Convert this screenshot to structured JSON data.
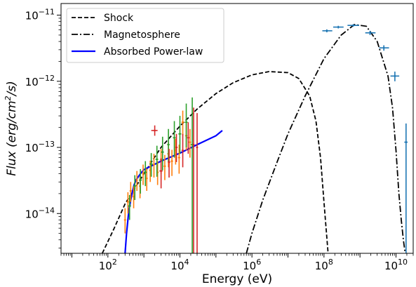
{
  "chart_data": {
    "type": "line",
    "xlabel": "Energy (eV)",
    "ylabel": "Flux (erg/cm²/s)",
    "ylabel_parts": {
      "pre": "Flux (erg/cm",
      "sup": "2",
      "post": "/s)"
    },
    "x_scale": "log",
    "y_scale": "log",
    "xlim": [
      5.0,
      30000000000.0
    ],
    "ylim": [
      2.5e-15,
      1.5e-11
    ],
    "x_ticks": [
      {
        "value": 100,
        "base": "10",
        "exp": "2"
      },
      {
        "value": 10000,
        "base": "10",
        "exp": "4"
      },
      {
        "value": 1000000,
        "base": "10",
        "exp": "6"
      },
      {
        "value": 100000000,
        "base": "10",
        "exp": "8"
      },
      {
        "value": 10000000000,
        "base": "10",
        "exp": "10"
      }
    ],
    "y_ticks": [
      {
        "value": 1e-14,
        "base": "10",
        "exp": "−14"
      },
      {
        "value": 1e-13,
        "base": "10",
        "exp": "−13"
      },
      {
        "value": 1e-12,
        "base": "10",
        "exp": "−12"
      },
      {
        "value": 1e-11,
        "base": "10",
        "exp": "−11"
      }
    ],
    "grid": false,
    "legend_position": "top-left",
    "series": [
      {
        "name": "Shock",
        "style": "dashed",
        "color": "#000000",
        "x": [
          70,
          150,
          300,
          1000,
          3000,
          10000,
          30000,
          100000,
          300000,
          1000000,
          3000000,
          10000000,
          20000000,
          40000000,
          60000000,
          80000000,
          100000000,
          130000000
        ],
        "y": [
          2.5e-15,
          6e-15,
          1.4e-14,
          4e-14,
          1e-13,
          2.1e-13,
          3.8e-13,
          6.5e-13,
          9.5e-13,
          1.25e-12,
          1.4e-12,
          1.35e-12,
          1.1e-12,
          6e-13,
          2.5e-13,
          7e-14,
          1.5e-14,
          2.5e-15
        ]
      },
      {
        "name": "Magnetosphere",
        "style": "dashdot",
        "color": "#000000",
        "x": [
          700000,
          1000000,
          2000000,
          5000000,
          10000000,
          30000000,
          100000000,
          300000000,
          700000000,
          1500000000,
          3000000000,
          6000000000,
          8000000000,
          10000000000,
          12000000000,
          14000000000,
          16000000000,
          18000000000
        ],
        "y": [
          2.5e-15,
          5e-15,
          1.6e-14,
          6e-14,
          1.6e-13,
          6e-13,
          2.2e-12,
          5e-12,
          7.2e-12,
          6.8e-12,
          4e-12,
          1.2e-12,
          4e-13,
          9e-14,
          2e-14,
          8e-15,
          4e-15,
          2.5e-15
        ]
      },
      {
        "name": "Absorbed Power-law",
        "style": "solid",
        "color": "#0000ff",
        "x": [
          300,
          330,
          380,
          450,
          520,
          600,
          800,
          1000,
          3000,
          10000,
          30000,
          100000,
          150000
        ],
        "y": [
          2.5e-15,
          5e-15,
          1.1e-14,
          1.8e-14,
          2.6e-14,
          3.2e-14,
          4e-14,
          4.6e-14,
          6.2e-14,
          8.2e-14,
          1.1e-13,
          1.5e-13,
          1.8e-13
        ]
      }
    ],
    "data_points": [
      {
        "label": "",
        "color": "#1f77b4",
        "points": [
          {
            "x": 120000000.0,
            "xerr": [
              30000000.0,
              50000000.0
            ],
            "y": 5.8e-12,
            "yerr": [
              3e-13,
              3e-13
            ]
          },
          {
            "x": 250000000.0,
            "xerr": [
              70000000.0,
              100000000.0
            ],
            "y": 6.6e-12,
            "yerr": [
              3e-13,
              3e-13
            ]
          },
          {
            "x": 650000000.0,
            "xerr": [
              200000000.0,
              300000000.0
            ],
            "y": 7e-12,
            "yerr": [
              3e-13,
              3e-13
            ]
          },
          {
            "x": 1900000000.0,
            "xerr": [
              500000000.0,
              800000000.0
            ],
            "y": 5.4e-12,
            "yerr": [
              4e-13,
              4e-13
            ]
          },
          {
            "x": 4600000000.0,
            "xerr": [
              1200000000.0,
              1800000000.0
            ],
            "y": 3.2e-12,
            "yerr": [
              3e-13,
              3e-13
            ]
          },
          {
            "x": 9300000000.0,
            "xerr": [
              2300000000.0,
              3000000000.0
            ],
            "y": 1.2e-12,
            "yerr": [
              2e-13,
              2e-13
            ]
          },
          {
            "x": 19000000000.0,
            "xerr": [
              2000000000.0,
              2000000000.0
            ],
            "y": 1.2e-13,
            "yerr": [
              1.2e-13,
              1.1e-13
            ]
          }
        ]
      },
      {
        "label": "",
        "color": "#ff7f0e",
        "points": [
          {
            "x": 300,
            "xerr": [
              20,
              20
            ],
            "y": 8e-15,
            "yerr": [
              3e-15,
              4e-15
            ]
          },
          {
            "x": 360,
            "xerr": [
              25,
              25
            ],
            "y": 1.5e-14,
            "yerr": [
              5e-15,
              6e-15
            ]
          },
          {
            "x": 430,
            "xerr": [
              30,
              30
            ],
            "y": 2.2e-14,
            "yerr": [
              7e-15,
              8e-15
            ]
          },
          {
            "x": 520,
            "xerr": [
              35,
              35
            ],
            "y": 1.8e-14,
            "yerr": [
              6e-15,
              8e-15
            ]
          },
          {
            "x": 640,
            "xerr": [
              40,
              40
            ],
            "y": 3.2e-14,
            "yerr": [
              1e-14,
              1.2e-14
            ]
          },
          {
            "x": 780,
            "xerr": [
              50,
              50
            ],
            "y": 2.6e-14,
            "yerr": [
              9e-15,
              1.1e-14
            ]
          },
          {
            "x": 950,
            "xerr": [
              60,
              60
            ],
            "y": 4e-14,
            "yerr": [
              1.3e-14,
              1.5e-14
            ]
          },
          {
            "x": 1200,
            "xerr": [
              80,
              80
            ],
            "y": 3.4e-14,
            "yerr": [
              1.2e-14,
              1.4e-14
            ]
          },
          {
            "x": 1500,
            "xerr": [
              100,
              100
            ],
            "y": 4.5e-14,
            "yerr": [
              1.5e-14,
              1.8e-14
            ]
          },
          {
            "x": 1900,
            "xerr": [
              130,
              130
            ],
            "y": 5.5e-14,
            "yerr": [
              2e-14,
              2.5e-14
            ]
          },
          {
            "x": 2400,
            "xerr": [
              170,
              170
            ],
            "y": 4.2e-14,
            "yerr": [
              1.5e-14,
              2e-14
            ]
          },
          {
            "x": 3000,
            "xerr": [
              220,
              220
            ],
            "y": 6.5e-14,
            "yerr": [
              2.5e-14,
              3e-14
            ]
          },
          {
            "x": 3800,
            "xerr": [
              280,
              280
            ],
            "y": 5.2e-14,
            "yerr": [
              2e-14,
              2.5e-14
            ]
          },
          {
            "x": 4800,
            "xerr": [
              350,
              350
            ],
            "y": 8e-14,
            "yerr": [
              3e-14,
              4e-14
            ]
          },
          {
            "x": 6000,
            "xerr": [
              450,
              450
            ],
            "y": 6.2e-14,
            "yerr": [
              2.5e-14,
              3e-14
            ]
          },
          {
            "x": 7600,
            "xerr": [
              550,
              550
            ],
            "y": 9e-14,
            "yerr": [
              3.5e-14,
              4.5e-14
            ]
          },
          {
            "x": 9500,
            "xerr": [
              700,
              700
            ],
            "y": 7e-14,
            "yerr": [
              3e-14,
              4e-14
            ]
          },
          {
            "x": 12000,
            "xerr": [
              900,
              900
            ],
            "y": 2.4e-13,
            "yerr": [
              9e-14,
              1.2e-13
            ]
          },
          {
            "x": 15000,
            "xerr": [
              1100,
              1100
            ],
            "y": 1.5e-13,
            "yerr": [
              6e-14,
              8e-14
            ]
          },
          {
            "x": 19000,
            "xerr": [
              1400,
              1400
            ],
            "y": 1.2e-13,
            "yerr": [
              5e-14,
              7e-14
            ]
          }
        ]
      },
      {
        "label": "",
        "color": "#2ca02c",
        "points": [
          {
            "x": 400,
            "xerr": [
              40,
              40
            ],
            "y": 1.3e-14,
            "yerr": [
              5e-15,
              6e-15
            ]
          },
          {
            "x": 560,
            "xerr": [
              50,
              50
            ],
            "y": 2.6e-14,
            "yerr": [
              1e-14,
              1.2e-14
            ]
          },
          {
            "x": 800,
            "xerr": [
              70,
              70
            ],
            "y": 3.2e-14,
            "yerr": [
              1.2e-14,
              1.5e-14
            ]
          },
          {
            "x": 1100,
            "xerr": [
              100,
              100
            ],
            "y": 4.2e-14,
            "yerr": [
              1.6e-14,
              2e-14
            ]
          },
          {
            "x": 1600,
            "xerr": [
              150,
              150
            ],
            "y": 5.6e-14,
            "yerr": [
              2e-14,
              2.6e-14
            ]
          },
          {
            "x": 2300,
            "xerr": [
              200,
              200
            ],
            "y": 6.6e-14,
            "yerr": [
              3e-14,
              4e-14
            ]
          },
          {
            "x": 3300,
            "xerr": [
              300,
              300
            ],
            "y": 8.5e-14,
            "yerr": [
              4e-14,
              6e-14
            ]
          },
          {
            "x": 4800,
            "xerr": [
              400,
              400
            ],
            "y": 1.1e-13,
            "yerr": [
              5e-14,
              8e-14
            ]
          },
          {
            "x": 7000,
            "xerr": [
              600,
              600
            ],
            "y": 1.4e-13,
            "yerr": [
              7e-14,
              1.1e-13
            ]
          },
          {
            "x": 10000,
            "xerr": [
              900,
              900
            ],
            "y": 1.6e-13,
            "yerr": [
              8e-14,
              1.4e-13
            ]
          },
          {
            "x": 15000,
            "xerr": [
              1300,
              1300
            ],
            "y": 2.4e-13,
            "yerr": [
              1.4e-13,
              2.2e-13
            ]
          },
          {
            "x": 22000,
            "xerr": [
              1900,
              1900
            ],
            "y": 1.1e-13,
            "yerr": [
              1.08e-13,
              4.6e-13
            ]
          }
        ]
      },
      {
        "label": "",
        "color": "#d62728",
        "points": [
          {
            "x": 2000,
            "xerr": [
              400,
              400
            ],
            "y": 1.8e-13,
            "yerr": [
              3e-14,
              3.5e-14
            ]
          },
          {
            "x": 3000,
            "xerr": [
              300,
              300
            ],
            "y": 4.4e-14,
            "yerr": [
              2e-14,
              2.5e-14
            ]
          },
          {
            "x": 5000,
            "xerr": [
              400,
              400
            ],
            "y": 6e-14,
            "yerr": [
              2.5e-14,
              3.5e-14
            ]
          },
          {
            "x": 8000,
            "xerr": [
              600,
              600
            ],
            "y": 1e-13,
            "yerr": [
              4e-14,
              6e-14
            ]
          },
          {
            "x": 12000,
            "xerr": [
              900,
              900
            ],
            "y": 9e-14,
            "yerr": [
              4e-14,
              7e-14
            ]
          },
          {
            "x": 17000,
            "xerr": [
              1200,
              1200
            ],
            "y": 1.4e-13,
            "yerr": [
              6e-14,
              1e-13
            ]
          },
          {
            "x": 24000,
            "xerr": [
              1500,
              1500
            ],
            "y": 1.1e-13,
            "yerr": [
              1.08e-13,
              2.9e-13
            ]
          },
          {
            "x": 30000,
            "xerr": [
              1800,
              1800
            ],
            "y": 1e-13,
            "yerr": [
              9.8e-14,
              2.3e-13
            ]
          }
        ]
      }
    ]
  }
}
